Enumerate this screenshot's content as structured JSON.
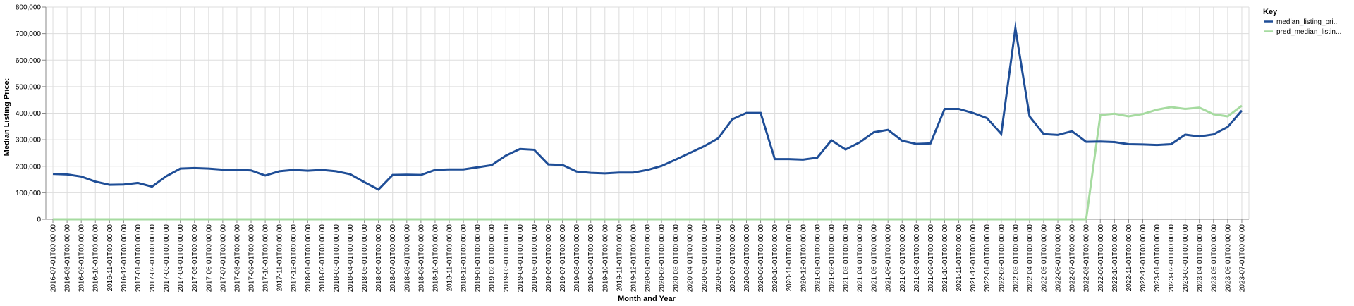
{
  "chart_data": {
    "type": "line",
    "xlabel": "Month and Year",
    "ylabel": "Median Listing Price:",
    "ylim": [
      0,
      800000
    ],
    "y_ticks": [
      0,
      100000,
      200000,
      300000,
      400000,
      500000,
      600000,
      700000,
      800000
    ],
    "y_tick_labels": [
      "0",
      "100,000",
      "200,000",
      "300,000",
      "400,000",
      "500,000",
      "600,000",
      "700,000",
      "800,000"
    ],
    "grid": true,
    "legend": {
      "title": "Key",
      "placement": "top-right"
    },
    "categories": [
      "2016-07-01T00:00:00",
      "2016-08-01T00:00:00",
      "2016-09-01T00:00:00",
      "2016-10-01T00:00:00",
      "2016-11-01T00:00:00",
      "2016-12-01T00:00:00",
      "2017-01-01T00:00:00",
      "2017-02-01T00:00:00",
      "2017-03-01T00:00:00",
      "2017-04-01T00:00:00",
      "2017-05-01T00:00:00",
      "2017-06-01T00:00:00",
      "2017-07-01T00:00:00",
      "2017-08-01T00:00:00",
      "2017-09-01T00:00:00",
      "2017-10-01T00:00:00",
      "2017-11-01T00:00:00",
      "2017-12-01T00:00:00",
      "2018-01-01T00:00:00",
      "2018-02-01T00:00:00",
      "2018-03-01T00:00:00",
      "2018-04-01T00:00:00",
      "2018-05-01T00:00:00",
      "2018-06-01T00:00:00",
      "2018-07-01T00:00:00",
      "2018-08-01T00:00:00",
      "2018-09-01T00:00:00",
      "2018-10-01T00:00:00",
      "2018-11-01T00:00:00",
      "2018-12-01T00:00:00",
      "2019-01-01T00:00:00",
      "2019-02-01T00:00:00",
      "2019-03-01T00:00:00",
      "2019-04-01T00:00:00",
      "2019-05-01T00:00:00",
      "2019-06-01T00:00:00",
      "2019-07-01T00:00:00",
      "2019-08-01T00:00:00",
      "2019-09-01T00:00:00",
      "2019-10-01T00:00:00",
      "2019-11-01T00:00:00",
      "2019-12-01T00:00:00",
      "2020-01-01T00:00:00",
      "2020-02-01T00:00:00",
      "2020-03-01T00:00:00",
      "2020-04-01T00:00:00",
      "2020-05-01T00:00:00",
      "2020-06-01T00:00:00",
      "2020-07-01T00:00:00",
      "2020-08-01T00:00:00",
      "2020-09-01T00:00:00",
      "2020-10-01T00:00:00",
      "2020-11-01T00:00:00",
      "2020-12-01T00:00:00",
      "2021-01-01T00:00:00",
      "2021-02-01T00:00:00",
      "2021-03-01T00:00:00",
      "2021-04-01T00:00:00",
      "2021-05-01T00:00:00",
      "2021-06-01T00:00:00",
      "2021-07-01T00:00:00",
      "2021-08-01T00:00:00",
      "2021-09-01T00:00:00",
      "2021-10-01T00:00:00",
      "2021-11-01T00:00:00",
      "2021-12-01T00:00:00",
      "2022-01-01T00:00:00",
      "2022-02-01T00:00:00",
      "2022-03-01T00:00:00",
      "2022-04-01T00:00:00",
      "2022-05-01T00:00:00",
      "2022-06-01T00:00:00",
      "2022-07-01T00:00:00",
      "2022-08-01T00:00:00",
      "2022-09-01T00:00:00",
      "2022-10-01T00:00:00",
      "2022-11-01T00:00:00",
      "2022-12-01T00:00:00",
      "2023-01-01T00:00:00",
      "2023-02-01T00:00:00",
      "2023-03-01T00:00:00",
      "2023-04-01T00:00:00",
      "2023-05-01T00:00:00",
      "2023-06-01T00:00:00",
      "2023-07-01T00:00:00"
    ],
    "series": [
      {
        "name": "median_listing_pri...",
        "color": "#1f4e97",
        "values": [
          171000,
          169000,
          161000,
          142000,
          130000,
          131000,
          137000,
          123000,
          162000,
          191000,
          193000,
          191000,
          187000,
          187000,
          184000,
          165000,
          181000,
          186000,
          183000,
          186000,
          181000,
          170000,
          140000,
          112000,
          167000,
          168000,
          167000,
          186000,
          188000,
          188000,
          196000,
          204000,
          240000,
          265000,
          262000,
          207000,
          205000,
          180000,
          175000,
          173000,
          176000,
          176000,
          186000,
          201000,
          225000,
          250000,
          275000,
          305000,
          377000,
          401000,
          401000,
          227000,
          227000,
          225000,
          232000,
          298000,
          263000,
          290000,
          328000,
          337000,
          296000,
          284000,
          286000,
          416000,
          416000,
          401000,
          381000,
          322000,
          720000,
          388000,
          321000,
          318000,
          332000,
          292000,
          293000,
          291000,
          283000,
          282000,
          280000,
          283000,
          319000,
          312000,
          320000,
          348000,
          410000
        ]
      },
      {
        "name": "pred_median_listin...",
        "color": "#a6dba0",
        "values": [
          0,
          0,
          0,
          0,
          0,
          0,
          0,
          0,
          0,
          0,
          0,
          0,
          0,
          0,
          0,
          0,
          0,
          0,
          0,
          0,
          0,
          0,
          0,
          0,
          0,
          0,
          0,
          0,
          0,
          0,
          0,
          0,
          0,
          0,
          0,
          0,
          0,
          0,
          0,
          0,
          0,
          0,
          0,
          0,
          0,
          0,
          0,
          0,
          0,
          0,
          0,
          0,
          0,
          0,
          0,
          0,
          0,
          0,
          0,
          0,
          0,
          0,
          0,
          0,
          0,
          0,
          0,
          0,
          0,
          0,
          0,
          0,
          0,
          0,
          393000,
          398000,
          388000,
          397000,
          413000,
          423000,
          416000,
          421000,
          396000,
          388000,
          428000
        ]
      }
    ]
  }
}
